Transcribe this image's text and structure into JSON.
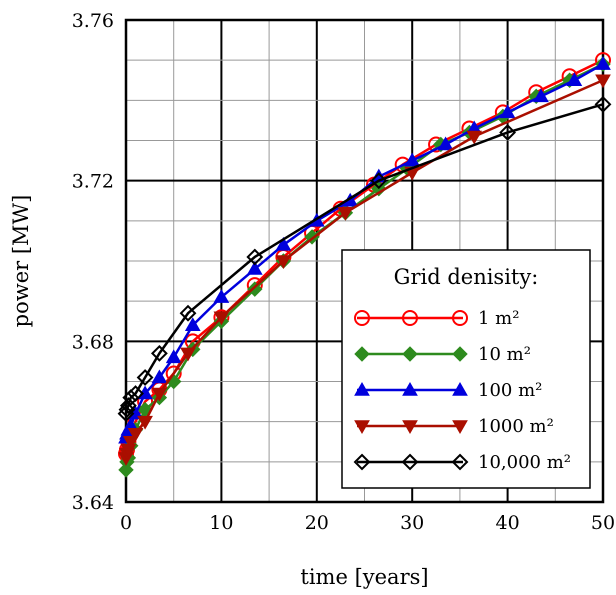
{
  "chart_data": {
    "type": "line",
    "xlabel": "time [years]",
    "ylabel": "power [MW]",
    "xlim": [
      0,
      50
    ],
    "ylim": [
      3.64,
      3.76
    ],
    "xticks": [
      "0",
      "10",
      "20",
      "30",
      "40",
      "50"
    ],
    "yticks": [
      "3.64",
      "3.68",
      "3.72",
      "3.76"
    ],
    "grid": true,
    "legend": {
      "title": "Grid denisity:",
      "placement": "lower-right"
    },
    "series": [
      {
        "name": "1 m²",
        "color": "#ff0000",
        "marker": "open-circle",
        "x": [
          0,
          0.1,
          0.25,
          0.5,
          1,
          2,
          3.5,
          5,
          7,
          10,
          13.5,
          16.5,
          19.5,
          22.5,
          26,
          29,
          32.5,
          36,
          39.5,
          43,
          46.5,
          50
        ],
        "y": [
          3.652,
          3.653,
          3.655,
          3.657,
          3.66,
          3.665,
          3.668,
          3.672,
          3.68,
          3.686,
          3.694,
          3.701,
          3.707,
          3.713,
          3.719,
          3.724,
          3.729,
          3.733,
          3.737,
          3.742,
          3.746,
          3.75
        ]
      },
      {
        "name": "10 m²",
        "color": "#2e8b1e",
        "marker": "diamond",
        "x": [
          0,
          0.1,
          0.25,
          0.5,
          1,
          2,
          3.5,
          5,
          7,
          10,
          13.5,
          16.5,
          19.5,
          23,
          26.5,
          29.5,
          33,
          36,
          39.5,
          43,
          46.5,
          50
        ],
        "y": [
          3.648,
          3.65,
          3.651,
          3.654,
          3.658,
          3.663,
          3.666,
          3.67,
          3.678,
          3.685,
          3.693,
          3.7,
          3.706,
          3.712,
          3.718,
          3.723,
          3.729,
          3.732,
          3.736,
          3.741,
          3.745,
          3.749
        ]
      },
      {
        "name": "100 m²",
        "color": "#0000dd",
        "marker": "triangle-up",
        "x": [
          0,
          0.1,
          0.25,
          0.5,
          1,
          2,
          3.5,
          5,
          7,
          10,
          13.5,
          16.5,
          20,
          23.5,
          26.5,
          30,
          33.5,
          36.5,
          40,
          43.5,
          47,
          50
        ],
        "y": [
          3.656,
          3.657,
          3.658,
          3.659,
          3.662,
          3.667,
          3.671,
          3.676,
          3.684,
          3.691,
          3.698,
          3.704,
          3.71,
          3.715,
          3.721,
          3.725,
          3.729,
          3.733,
          3.737,
          3.741,
          3.745,
          3.749
        ]
      },
      {
        "name": "1000 m²",
        "color": "#aa0f00",
        "marker": "triangle-down",
        "x": [
          0,
          0.1,
          0.25,
          0.5,
          1,
          2,
          3.5,
          6.5,
          10,
          16.5,
          23,
          30,
          36.5,
          50
        ],
        "y": [
          3.651,
          3.652,
          3.653,
          3.655,
          3.657,
          3.66,
          3.667,
          3.677,
          3.686,
          3.7,
          3.712,
          3.722,
          3.731,
          3.745
        ]
      },
      {
        "name": "10,000 m²",
        "color": "#000000",
        "marker": "open-diamond",
        "x": [
          0,
          0.1,
          0.25,
          0.5,
          1,
          2,
          3.5,
          6.5,
          13.5,
          26.5,
          40,
          50
        ],
        "y": [
          3.662,
          3.663,
          3.664,
          3.666,
          3.667,
          3.671,
          3.677,
          3.687,
          3.701,
          3.72,
          3.732,
          3.739
        ]
      }
    ]
  }
}
